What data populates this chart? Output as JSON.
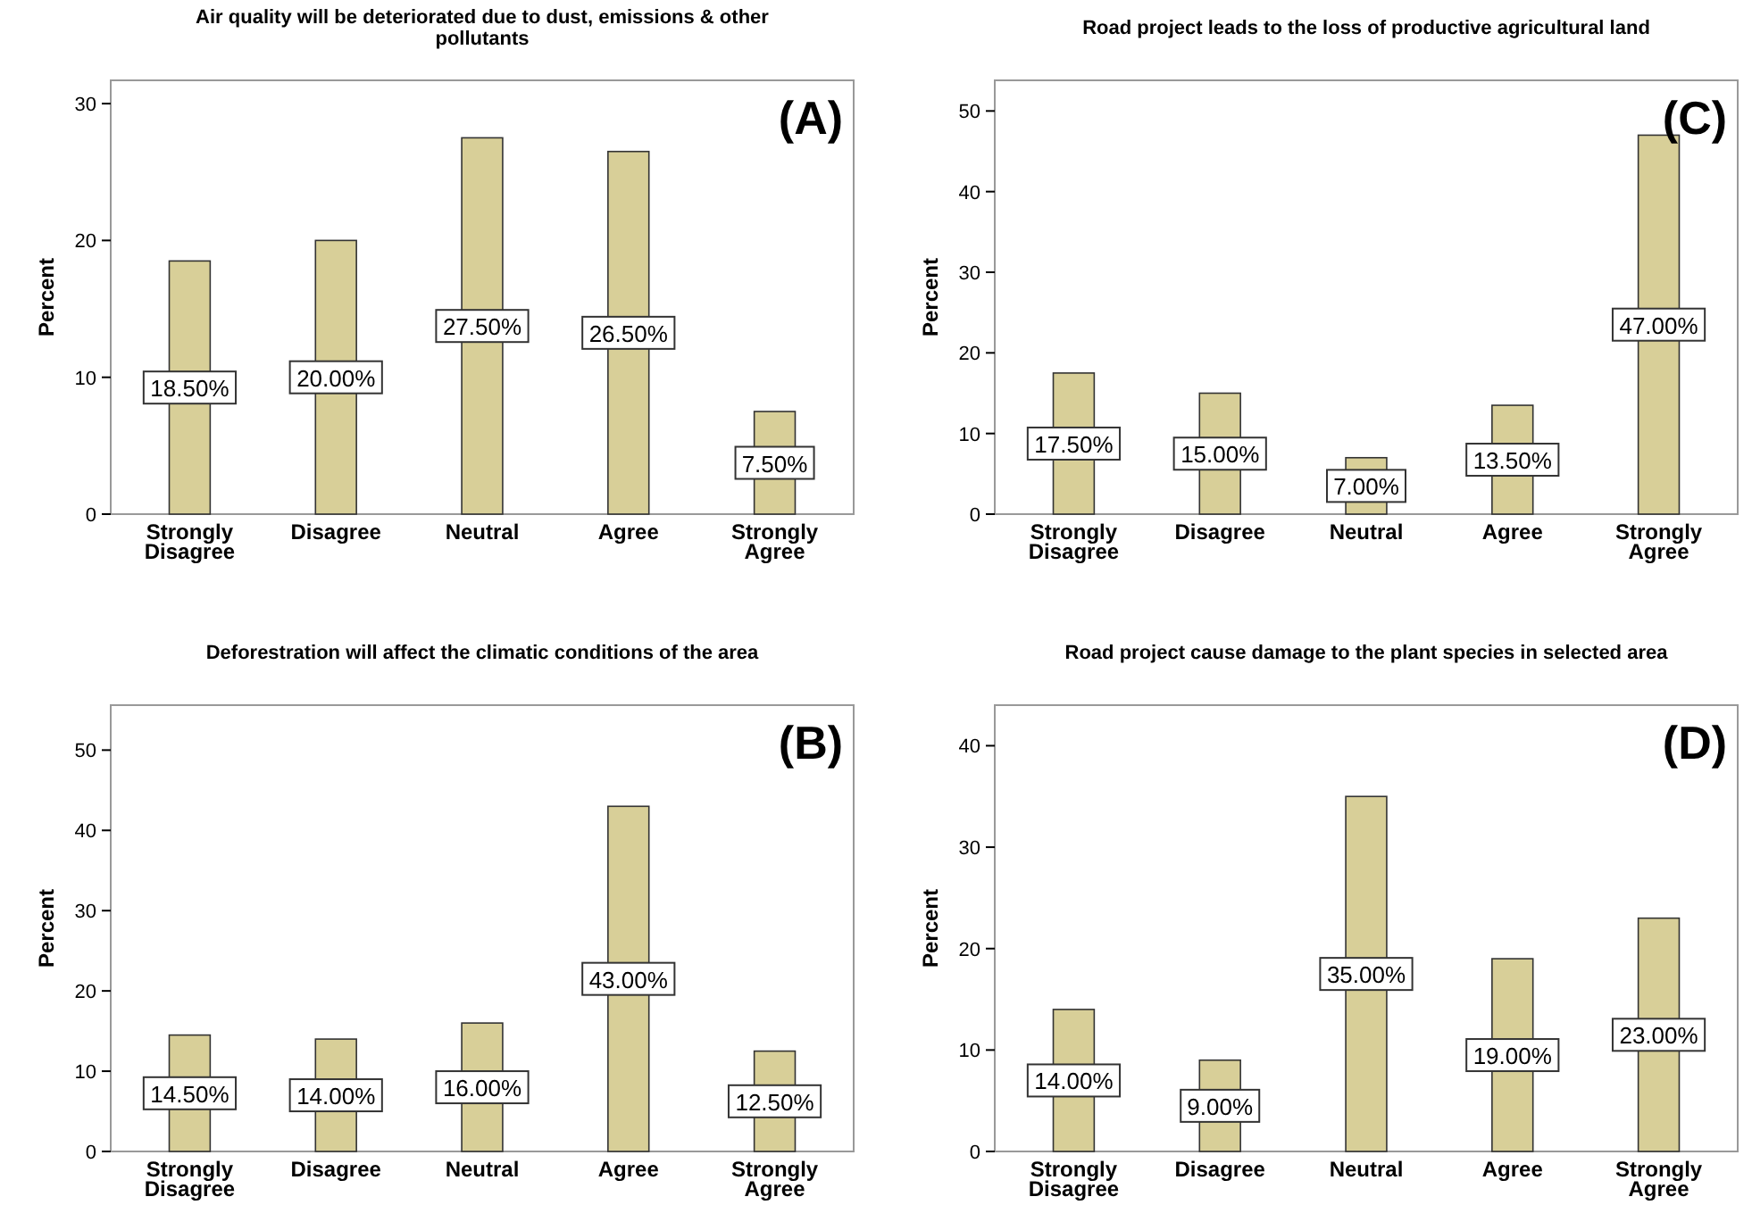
{
  "chart_data": [
    {
      "type": "bar",
      "title": "Air quality will be deteriorated due to dust, emissions & other pollutants",
      "ylabel": "Percent",
      "categories": [
        "Strongly Disagree",
        "Disagree",
        "Neutral",
        "Agree",
        "Strongly Agree"
      ],
      "values": [
        18.5,
        20,
        27.5,
        26.5,
        7.5
      ],
      "value_labels": [
        "18.50%",
        "20.00%",
        "27.50%",
        "26.50%",
        "7.50%"
      ],
      "color": "#d8cf98",
      "ylim": [
        0,
        31.7
      ],
      "yticks": [
        0,
        10,
        20,
        30
      ],
      "annotations": [
        "(A)"
      ]
    },
    {
      "type": "bar",
      "title": "Road project leads to the loss of productive agricultural land",
      "ylabel": "Percent",
      "categories": [
        "Strongly Disagree",
        "Disagree",
        "Neutral",
        "Agree",
        "Strongly Agree"
      ],
      "values": [
        17.5,
        15,
        7,
        13.5,
        47
      ],
      "value_labels": [
        "17.50%",
        "15.00%",
        "7.00%",
        "13.50%",
        "47.00%"
      ],
      "color": "#d8cf98",
      "ylim": [
        0,
        53.8
      ],
      "yticks": [
        0,
        10,
        20,
        30,
        40,
        50
      ],
      "annotations": [
        "(C)"
      ]
    },
    {
      "type": "bar",
      "title": "Deforestration will affect the climatic conditions of the area",
      "ylabel": "Percent",
      "categories": [
        "Strongly Disagree",
        "Disagree",
        "Neutral",
        "Agree",
        "Strongly Agree"
      ],
      "values": [
        14.5,
        14,
        16,
        43,
        12.5
      ],
      "value_labels": [
        "14.50%",
        "14.00%",
        "16.00%",
        "43.00%",
        "12.50%"
      ],
      "color": "#d8cf98",
      "ylim": [
        0,
        55.6
      ],
      "yticks": [
        0,
        10,
        20,
        30,
        40,
        50
      ],
      "annotations": [
        "(B)"
      ]
    },
    {
      "type": "bar",
      "title": "Road project cause damage to the plant species in selected area",
      "ylabel": "Percent",
      "categories": [
        "Strongly Disagree",
        "Disagree",
        "Neutral",
        "Agree",
        "Strongly Agree"
      ],
      "values": [
        14,
        9,
        35,
        19,
        23
      ],
      "value_labels": [
        "14.00%",
        "9.00%",
        "35.00%",
        "19.00%",
        "23.00%"
      ],
      "color": "#d8cf98",
      "ylim": [
        0,
        44
      ],
      "yticks": [
        0,
        10,
        20,
        30,
        40
      ],
      "annotations": [
        "(D)"
      ]
    }
  ]
}
